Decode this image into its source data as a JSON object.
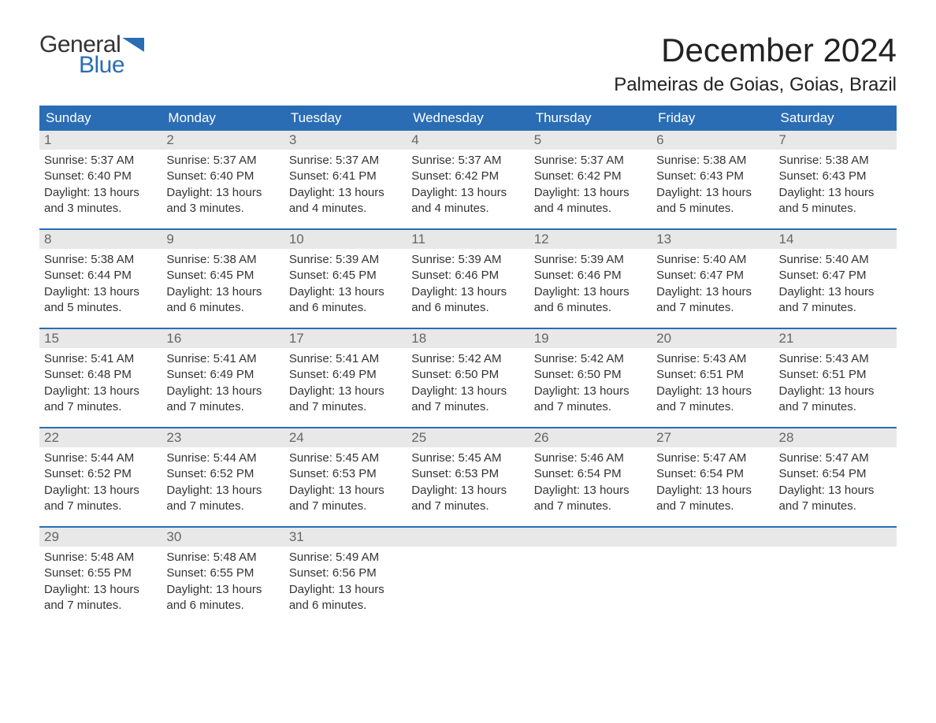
{
  "logo": {
    "general": "General",
    "blue": "Blue"
  },
  "title": "December 2024",
  "location": "Palmeiras de Goias, Goias, Brazil",
  "colors": {
    "brand_blue": "#2a6db5",
    "header_bg": "#2a6db5",
    "header_text": "#ffffff",
    "daynum_bg": "#e8e8e8",
    "daynum_text": "#666666",
    "body_text": "#333333",
    "background": "#ffffff"
  },
  "weekdays": [
    "Sunday",
    "Monday",
    "Tuesday",
    "Wednesday",
    "Thursday",
    "Friday",
    "Saturday"
  ],
  "weeks": [
    [
      {
        "n": "1",
        "sunrise": "5:37 AM",
        "sunset": "6:40 PM",
        "daylight": "13 hours and 3 minutes."
      },
      {
        "n": "2",
        "sunrise": "5:37 AM",
        "sunset": "6:40 PM",
        "daylight": "13 hours and 3 minutes."
      },
      {
        "n": "3",
        "sunrise": "5:37 AM",
        "sunset": "6:41 PM",
        "daylight": "13 hours and 4 minutes."
      },
      {
        "n": "4",
        "sunrise": "5:37 AM",
        "sunset": "6:42 PM",
        "daylight": "13 hours and 4 minutes."
      },
      {
        "n": "5",
        "sunrise": "5:37 AM",
        "sunset": "6:42 PM",
        "daylight": "13 hours and 4 minutes."
      },
      {
        "n": "6",
        "sunrise": "5:38 AM",
        "sunset": "6:43 PM",
        "daylight": "13 hours and 5 minutes."
      },
      {
        "n": "7",
        "sunrise": "5:38 AM",
        "sunset": "6:43 PM",
        "daylight": "13 hours and 5 minutes."
      }
    ],
    [
      {
        "n": "8",
        "sunrise": "5:38 AM",
        "sunset": "6:44 PM",
        "daylight": "13 hours and 5 minutes."
      },
      {
        "n": "9",
        "sunrise": "5:38 AM",
        "sunset": "6:45 PM",
        "daylight": "13 hours and 6 minutes."
      },
      {
        "n": "10",
        "sunrise": "5:39 AM",
        "sunset": "6:45 PM",
        "daylight": "13 hours and 6 minutes."
      },
      {
        "n": "11",
        "sunrise": "5:39 AM",
        "sunset": "6:46 PM",
        "daylight": "13 hours and 6 minutes."
      },
      {
        "n": "12",
        "sunrise": "5:39 AM",
        "sunset": "6:46 PM",
        "daylight": "13 hours and 6 minutes."
      },
      {
        "n": "13",
        "sunrise": "5:40 AM",
        "sunset": "6:47 PM",
        "daylight": "13 hours and 7 minutes."
      },
      {
        "n": "14",
        "sunrise": "5:40 AM",
        "sunset": "6:47 PM",
        "daylight": "13 hours and 7 minutes."
      }
    ],
    [
      {
        "n": "15",
        "sunrise": "5:41 AM",
        "sunset": "6:48 PM",
        "daylight": "13 hours and 7 minutes."
      },
      {
        "n": "16",
        "sunrise": "5:41 AM",
        "sunset": "6:49 PM",
        "daylight": "13 hours and 7 minutes."
      },
      {
        "n": "17",
        "sunrise": "5:41 AM",
        "sunset": "6:49 PM",
        "daylight": "13 hours and 7 minutes."
      },
      {
        "n": "18",
        "sunrise": "5:42 AM",
        "sunset": "6:50 PM",
        "daylight": "13 hours and 7 minutes."
      },
      {
        "n": "19",
        "sunrise": "5:42 AM",
        "sunset": "6:50 PM",
        "daylight": "13 hours and 7 minutes."
      },
      {
        "n": "20",
        "sunrise": "5:43 AM",
        "sunset": "6:51 PM",
        "daylight": "13 hours and 7 minutes."
      },
      {
        "n": "21",
        "sunrise": "5:43 AM",
        "sunset": "6:51 PM",
        "daylight": "13 hours and 7 minutes."
      }
    ],
    [
      {
        "n": "22",
        "sunrise": "5:44 AM",
        "sunset": "6:52 PM",
        "daylight": "13 hours and 7 minutes."
      },
      {
        "n": "23",
        "sunrise": "5:44 AM",
        "sunset": "6:52 PM",
        "daylight": "13 hours and 7 minutes."
      },
      {
        "n": "24",
        "sunrise": "5:45 AM",
        "sunset": "6:53 PM",
        "daylight": "13 hours and 7 minutes."
      },
      {
        "n": "25",
        "sunrise": "5:45 AM",
        "sunset": "6:53 PM",
        "daylight": "13 hours and 7 minutes."
      },
      {
        "n": "26",
        "sunrise": "5:46 AM",
        "sunset": "6:54 PM",
        "daylight": "13 hours and 7 minutes."
      },
      {
        "n": "27",
        "sunrise": "5:47 AM",
        "sunset": "6:54 PM",
        "daylight": "13 hours and 7 minutes."
      },
      {
        "n": "28",
        "sunrise": "5:47 AM",
        "sunset": "6:54 PM",
        "daylight": "13 hours and 7 minutes."
      }
    ],
    [
      {
        "n": "29",
        "sunrise": "5:48 AM",
        "sunset": "6:55 PM",
        "daylight": "13 hours and 7 minutes."
      },
      {
        "n": "30",
        "sunrise": "5:48 AM",
        "sunset": "6:55 PM",
        "daylight": "13 hours and 6 minutes."
      },
      {
        "n": "31",
        "sunrise": "5:49 AM",
        "sunset": "6:56 PM",
        "daylight": "13 hours and 6 minutes."
      },
      null,
      null,
      null,
      null
    ]
  ],
  "labels": {
    "sunrise": "Sunrise: ",
    "sunset": "Sunset: ",
    "daylight": "Daylight: "
  }
}
